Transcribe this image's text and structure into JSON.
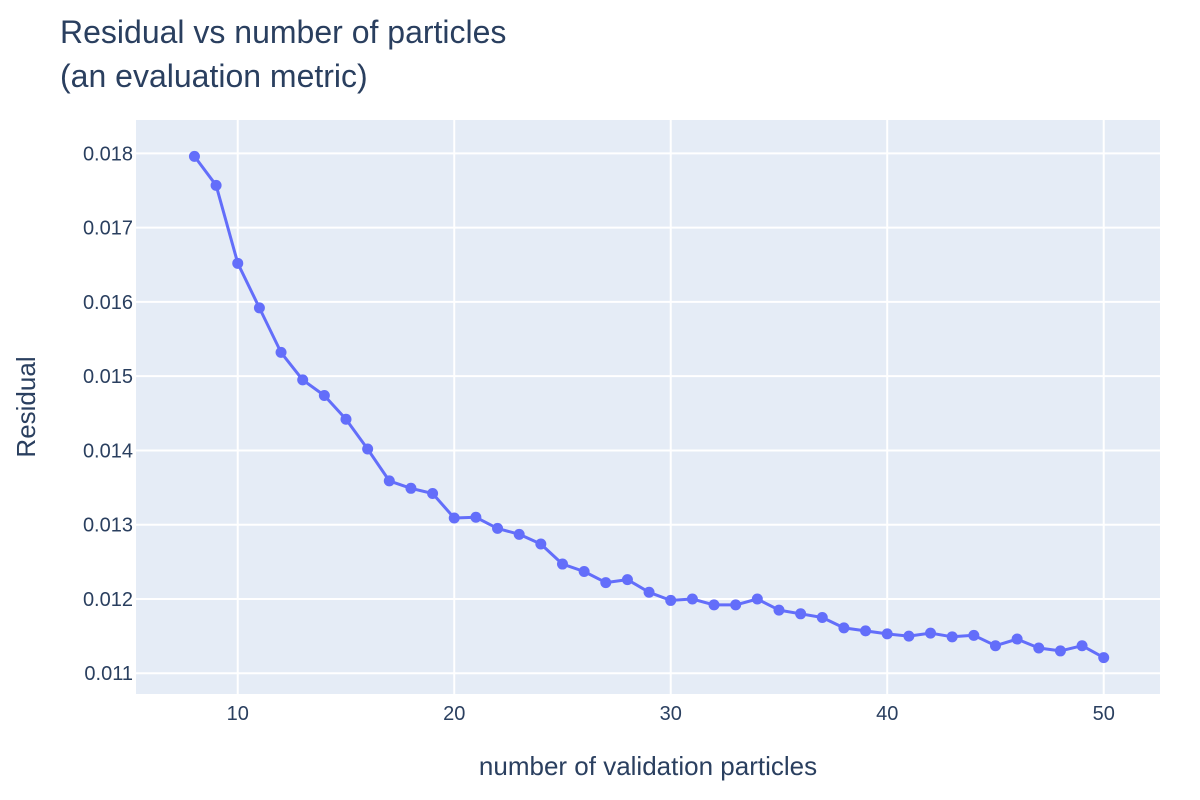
{
  "chart_data": {
    "type": "line",
    "title_lines": [
      "Residual vs number of particles",
      "(an evaluation metric)"
    ],
    "xlabel": "number of validation particles",
    "ylabel": "Residual",
    "xlim": [
      5.3,
      52.6
    ],
    "ylim": [
      0.01072,
      0.01845
    ],
    "x_ticks": [
      10,
      20,
      30,
      40,
      50
    ],
    "y_ticks": [
      0.011,
      0.012,
      0.013,
      0.014,
      0.015,
      0.016,
      0.017,
      0.018
    ],
    "y_tick_labels": [
      "0.011",
      "0.012",
      "0.013",
      "0.014",
      "0.015",
      "0.016",
      "0.017",
      "0.018"
    ],
    "grid": true,
    "series": [
      {
        "color": "#636efa",
        "x": [
          8,
          9,
          10,
          11,
          12,
          13,
          14,
          15,
          16,
          17,
          18,
          19,
          20,
          21,
          22,
          23,
          24,
          25,
          26,
          27,
          28,
          29,
          30,
          31,
          32,
          33,
          34,
          35,
          36,
          37,
          38,
          39,
          40,
          41,
          42,
          43,
          44,
          45,
          46,
          47,
          48,
          49,
          50
        ],
        "y": [
          0.01796,
          0.01757,
          0.01652,
          0.01592,
          0.01532,
          0.01495,
          0.01474,
          0.01442,
          0.01402,
          0.01359,
          0.01349,
          0.01342,
          0.01309,
          0.0131,
          0.01295,
          0.01287,
          0.01274,
          0.01247,
          0.01237,
          0.01222,
          0.01226,
          0.01209,
          0.01198,
          0.012,
          0.01192,
          0.01192,
          0.012,
          0.01185,
          0.0118,
          0.01175,
          0.01161,
          0.01157,
          0.01153,
          0.0115,
          0.01154,
          0.01149,
          0.01151,
          0.01137,
          0.01146,
          0.01134,
          0.0113,
          0.01137,
          0.01121
        ]
      }
    ]
  }
}
